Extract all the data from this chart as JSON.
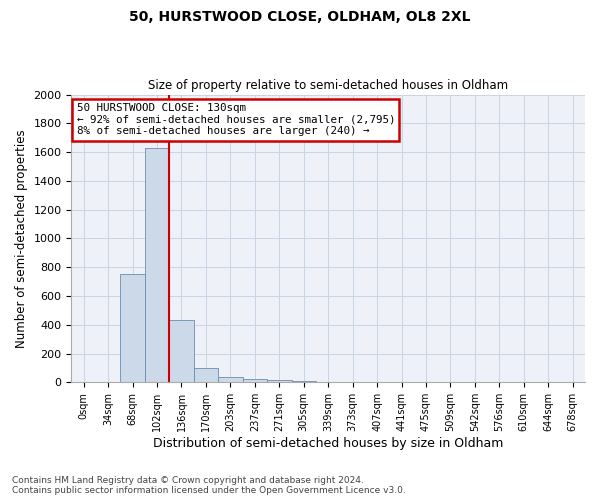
{
  "title1": "50, HURSTWOOD CLOSE, OLDHAM, OL8 2XL",
  "title2": "Size of property relative to semi-detached houses in Oldham",
  "xlabel": "Distribution of semi-detached houses by size in Oldham",
  "ylabel": "Number of semi-detached properties",
  "footnote": "Contains HM Land Registry data © Crown copyright and database right 2024.\nContains public sector information licensed under the Open Government Licence v3.0.",
  "bin_labels": [
    "0sqm",
    "34sqm",
    "68sqm",
    "102sqm",
    "136sqm",
    "170sqm",
    "203sqm",
    "237sqm",
    "271sqm",
    "305sqm",
    "339sqm",
    "373sqm",
    "407sqm",
    "441sqm",
    "475sqm",
    "509sqm",
    "542sqm",
    "576sqm",
    "610sqm",
    "644sqm",
    "678sqm"
  ],
  "bar_values": [
    0,
    0,
    750,
    1630,
    430,
    100,
    40,
    25,
    15,
    10,
    0,
    0,
    0,
    0,
    0,
    0,
    0,
    0,
    0,
    0,
    0
  ],
  "bar_color": "#ccd9e8",
  "bar_edge_color": "#6b8cae",
  "annotation_text1": "50 HURSTWOOD CLOSE: 130sqm",
  "annotation_text2": "← 92% of semi-detached houses are smaller (2,795)",
  "annotation_text3": "8% of semi-detached houses are larger (240) →",
  "annotation_box_color": "white",
  "annotation_box_edge": "#cc0000",
  "vline_color": "#cc0000",
  "ylim": [
    0,
    2000
  ],
  "yticks": [
    0,
    200,
    400,
    600,
    800,
    1000,
    1200,
    1400,
    1600,
    1800,
    2000
  ],
  "grid_color": "#c8d4e4",
  "background_color": "#eef2f8"
}
